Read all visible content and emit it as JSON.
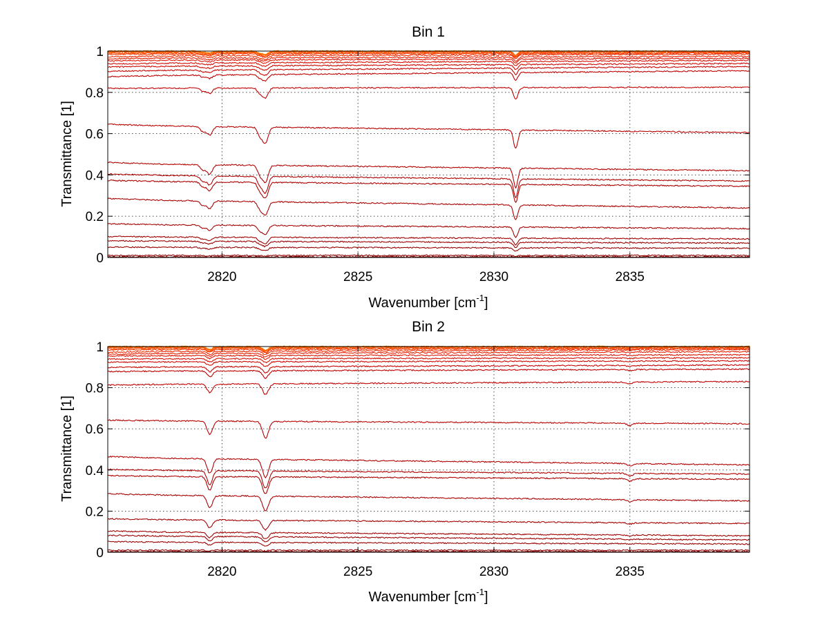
{
  "chart_data": [
    {
      "type": "line",
      "title": "Bin 1",
      "xlabel_main": "Wavenumber [cm",
      "xlabel_sup": "-1",
      "xlabel_end": "]",
      "ylabel": "Transmittance [1]",
      "xlim": [
        2815.8,
        2839.4
      ],
      "ylim": [
        0,
        1
      ],
      "xticks": [
        2820,
        2825,
        2830,
        2835
      ],
      "xtick_labels": [
        "2820",
        "2825",
        "2830",
        "2835"
      ],
      "yticks": [
        0,
        0.2,
        0.4,
        0.6,
        0.8,
        1
      ],
      "ytick_labels": [
        "0",
        "0.2",
        "0.4",
        "0.6",
        "0.8",
        "1"
      ],
      "grid": true,
      "absorption_lines": [
        {
          "x": 2819.3,
          "width": 0.1,
          "strength": 0.3
        },
        {
          "x": 2819.55,
          "width": 0.1,
          "strength": 0.5
        },
        {
          "x": 2821.4,
          "width": 0.09,
          "strength": 0.5
        },
        {
          "x": 2821.6,
          "width": 0.1,
          "strength": 0.9
        },
        {
          "x": 2830.8,
          "width": 0.08,
          "strength": 1.1
        }
      ],
      "series": [
        {
          "left": 1.0,
          "right": 1.0,
          "color": "#ff8c00"
        },
        {
          "left": 0.999,
          "right": 0.999,
          "color": "#ff7a00"
        },
        {
          "left": 0.997,
          "right": 0.998,
          "color": "#ff6a00"
        },
        {
          "left": 0.995,
          "right": 0.997,
          "color": "#ff5a00"
        },
        {
          "left": 0.99,
          "right": 0.993,
          "color": "#ff4800"
        },
        {
          "left": 0.985,
          "right": 0.99,
          "color": "#f83800"
        },
        {
          "left": 0.975,
          "right": 0.985,
          "color": "#f02a00"
        },
        {
          "left": 0.965,
          "right": 0.975,
          "color": "#e81e00"
        },
        {
          "left": 0.955,
          "right": 0.965,
          "color": "#e01400"
        },
        {
          "left": 0.94,
          "right": 0.955,
          "color": "#d80e00"
        },
        {
          "left": 0.925,
          "right": 0.94,
          "color": "#d00800"
        },
        {
          "left": 0.905,
          "right": 0.925,
          "color": "#c80400"
        },
        {
          "left": 0.88,
          "right": 0.905,
          "color": "#c00000"
        },
        {
          "left": 0.82,
          "right": 0.825,
          "color": "#c00000"
        },
        {
          "left": 0.64,
          "right": 0.605,
          "color": "#b80000"
        },
        {
          "left": 0.455,
          "right": 0.42,
          "color": "#b40000"
        },
        {
          "left": 0.4,
          "right": 0.37,
          "color": "#b00000"
        },
        {
          "left": 0.37,
          "right": 0.345,
          "color": "#ac0000"
        },
        {
          "left": 0.28,
          "right": 0.24,
          "color": "#a80000"
        },
        {
          "left": 0.16,
          "right": 0.14,
          "color": "#a40000"
        },
        {
          "left": 0.1,
          "right": 0.09,
          "color": "#a00000"
        },
        {
          "left": 0.08,
          "right": 0.07,
          "color": "#9c0000"
        },
        {
          "left": 0.05,
          "right": 0.045,
          "color": "#980000"
        },
        {
          "left": 0.01,
          "right": 0.01,
          "color": "#900000"
        },
        {
          "left": 0.003,
          "right": 0.003,
          "color": "#800000"
        },
        {
          "left": 0.0,
          "right": 0.0,
          "color": "#700000"
        }
      ]
    },
    {
      "type": "line",
      "title": "Bin 2",
      "xlabel_main": "Wavenumber [cm",
      "xlabel_sup": "-1",
      "xlabel_end": "]",
      "ylabel": "Transmittance [1]",
      "xlim": [
        2815.8,
        2839.4
      ],
      "ylim": [
        0,
        1
      ],
      "xticks": [
        2820,
        2825,
        2830,
        2835
      ],
      "xtick_labels": [
        "2820",
        "2825",
        "2830",
        "2835"
      ],
      "yticks": [
        0,
        0.2,
        0.4,
        0.6,
        0.8,
        1
      ],
      "ytick_labels": [
        "0",
        "0.2",
        "0.4",
        "0.6",
        "0.8",
        "1"
      ],
      "grid": true,
      "absorption_lines": [
        {
          "x": 2819.55,
          "width": 0.1,
          "strength": 0.8
        },
        {
          "x": 2821.6,
          "width": 0.11,
          "strength": 1.0
        },
        {
          "x": 2835.0,
          "width": 0.1,
          "strength": 0.15
        }
      ],
      "series": [
        {
          "left": 1.0,
          "right": 1.0,
          "color": "#ff8c00"
        },
        {
          "left": 0.999,
          "right": 0.999,
          "color": "#ff7a00"
        },
        {
          "left": 0.997,
          "right": 0.998,
          "color": "#ff6a00"
        },
        {
          "left": 0.995,
          "right": 0.997,
          "color": "#ff5a00"
        },
        {
          "left": 0.99,
          "right": 0.993,
          "color": "#ff4800"
        },
        {
          "left": 0.985,
          "right": 0.99,
          "color": "#f83800"
        },
        {
          "left": 0.975,
          "right": 0.985,
          "color": "#f02a00"
        },
        {
          "left": 0.965,
          "right": 0.975,
          "color": "#e81e00"
        },
        {
          "left": 0.955,
          "right": 0.96,
          "color": "#e01400"
        },
        {
          "left": 0.94,
          "right": 0.945,
          "color": "#d80e00"
        },
        {
          "left": 0.925,
          "right": 0.93,
          "color": "#d00800"
        },
        {
          "left": 0.9,
          "right": 0.91,
          "color": "#c80400"
        },
        {
          "left": 0.88,
          "right": 0.89,
          "color": "#c00000"
        },
        {
          "left": 0.815,
          "right": 0.83,
          "color": "#c00000"
        },
        {
          "left": 0.64,
          "right": 0.625,
          "color": "#b80000"
        },
        {
          "left": 0.46,
          "right": 0.425,
          "color": "#b40000"
        },
        {
          "left": 0.4,
          "right": 0.38,
          "color": "#b00000"
        },
        {
          "left": 0.37,
          "right": 0.355,
          "color": "#ac0000"
        },
        {
          "left": 0.28,
          "right": 0.25,
          "color": "#a80000"
        },
        {
          "left": 0.16,
          "right": 0.14,
          "color": "#a40000"
        },
        {
          "left": 0.1,
          "right": 0.08,
          "color": "#a00000"
        },
        {
          "left": 0.08,
          "right": 0.06,
          "color": "#9c0000"
        },
        {
          "left": 0.05,
          "right": 0.04,
          "color": "#980000"
        },
        {
          "left": 0.01,
          "right": 0.01,
          "color": "#900000"
        },
        {
          "left": 0.003,
          "right": 0.003,
          "color": "#800000"
        },
        {
          "left": 0.0,
          "right": 0.0,
          "color": "#700000"
        }
      ]
    }
  ]
}
